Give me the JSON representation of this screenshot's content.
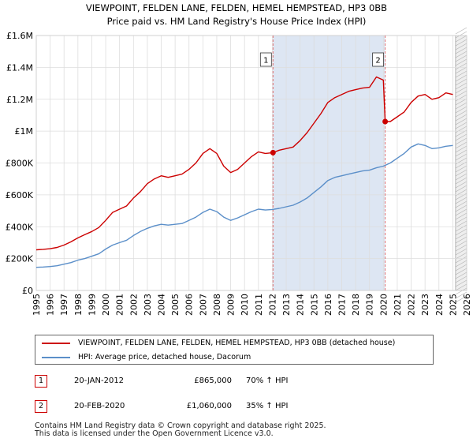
{
  "chart_data": {
    "type": "line",
    "title": "VIEWPOINT, FELDEN LANE, FELDEN, HEMEL HEMPSTEAD, HP3 0BB",
    "subtitle": "Price paid vs. HM Land Registry's House Price Index (HPI)",
    "xlabel": "",
    "ylabel": "",
    "xlim": [
      1995,
      2026
    ],
    "ylim": [
      0,
      1600000
    ],
    "x_ticks": [
      1995,
      1996,
      1997,
      1998,
      1999,
      2000,
      2001,
      2002,
      2003,
      2004,
      2005,
      2006,
      2007,
      2008,
      2009,
      2010,
      2011,
      2012,
      2013,
      2014,
      2015,
      2016,
      2017,
      2018,
      2019,
      2020,
      2021,
      2022,
      2023,
      2024,
      2025,
      2026
    ],
    "y_ticks": [
      {
        "value": 0,
        "label": "£0"
      },
      {
        "value": 200000,
        "label": "£200K"
      },
      {
        "value": 400000,
        "label": "£400K"
      },
      {
        "value": 600000,
        "label": "£600K"
      },
      {
        "value": 800000,
        "label": "£800K"
      },
      {
        "value": 1000000,
        "label": "£1M"
      },
      {
        "value": 1200000,
        "label": "£1.2M"
      },
      {
        "value": 1400000,
        "label": "£1.4M"
      },
      {
        "value": 1600000,
        "label": "£1.6M"
      }
    ],
    "grid": true,
    "series": [
      {
        "name": "VIEWPOINT, FELDEN LANE, FELDEN, HEMEL HEMPSTEAD, HP3 0BB (detached house)",
        "color": "#cc0000",
        "x": [
          1995.0,
          1995.5,
          1996.0,
          1996.5,
          1997.0,
          1997.5,
          1998.0,
          1998.5,
          1999.0,
          1999.5,
          2000.0,
          2000.5,
          2001.0,
          2001.5,
          2002.0,
          2002.5,
          2003.0,
          2003.5,
          2004.0,
          2004.5,
          2005.0,
          2005.5,
          2006.0,
          2006.5,
          2007.0,
          2007.5,
          2008.0,
          2008.5,
          2009.0,
          2009.5,
          2010.0,
          2010.5,
          2011.0,
          2011.5,
          2012.05,
          2012.5,
          2013.0,
          2013.5,
          2014.0,
          2014.5,
          2015.0,
          2015.5,
          2016.0,
          2016.5,
          2017.0,
          2017.5,
          2018.0,
          2018.5,
          2019.0,
          2019.5,
          2020.0,
          2020.13,
          2020.5,
          2021.0,
          2021.5,
          2022.0,
          2022.5,
          2023.0,
          2023.5,
          2024.0,
          2024.5,
          2025.0
        ],
        "values": [
          255000,
          258000,
          262000,
          270000,
          285000,
          305000,
          330000,
          350000,
          370000,
          395000,
          440000,
          490000,
          510000,
          530000,
          580000,
          620000,
          670000,
          700000,
          720000,
          710000,
          720000,
          730000,
          760000,
          800000,
          860000,
          890000,
          860000,
          780000,
          740000,
          760000,
          800000,
          840000,
          870000,
          860000,
          865000,
          880000,
          890000,
          900000,
          940000,
          990000,
          1050000,
          1110000,
          1180000,
          1210000,
          1230000,
          1250000,
          1260000,
          1270000,
          1275000,
          1340000,
          1320000,
          1060000,
          1060000,
          1090000,
          1120000,
          1180000,
          1220000,
          1230000,
          1200000,
          1210000,
          1240000,
          1230000
        ]
      },
      {
        "name": "HPI: Average price, detached house, Dacorum",
        "color": "#5b8fc9",
        "x": [
          1995.0,
          1995.5,
          1996.0,
          1996.5,
          1997.0,
          1997.5,
          1998.0,
          1998.5,
          1999.0,
          1999.5,
          2000.0,
          2000.5,
          2001.0,
          2001.5,
          2002.0,
          2002.5,
          2003.0,
          2003.5,
          2004.0,
          2004.5,
          2005.0,
          2005.5,
          2006.0,
          2006.5,
          2007.0,
          2007.5,
          2008.0,
          2008.5,
          2009.0,
          2009.5,
          2010.0,
          2010.5,
          2011.0,
          2011.5,
          2012.0,
          2012.5,
          2013.0,
          2013.5,
          2014.0,
          2014.5,
          2015.0,
          2015.5,
          2016.0,
          2016.5,
          2017.0,
          2017.5,
          2018.0,
          2018.5,
          2019.0,
          2019.5,
          2020.0,
          2020.5,
          2021.0,
          2021.5,
          2022.0,
          2022.5,
          2023.0,
          2023.5,
          2024.0,
          2024.5,
          2025.0
        ],
        "values": [
          145000,
          147000,
          150000,
          155000,
          165000,
          175000,
          190000,
          200000,
          215000,
          230000,
          260000,
          285000,
          300000,
          315000,
          345000,
          370000,
          390000,
          405000,
          415000,
          410000,
          415000,
          420000,
          440000,
          460000,
          490000,
          510000,
          495000,
          460000,
          440000,
          455000,
          475000,
          495000,
          510000,
          505000,
          508000,
          515000,
          525000,
          535000,
          555000,
          580000,
          615000,
          650000,
          690000,
          710000,
          720000,
          730000,
          740000,
          750000,
          755000,
          770000,
          780000,
          800000,
          830000,
          860000,
          900000,
          920000,
          910000,
          890000,
          895000,
          905000,
          910000
        ]
      }
    ],
    "annotations": [
      {
        "label": "1",
        "x": 2012.05,
        "y": 865000
      },
      {
        "label": "2",
        "x": 2020.13,
        "y": 1060000
      }
    ],
    "forecast_start": 2025.2
  },
  "legend": {
    "series1": "VIEWPOINT, FELDEN LANE, FELDEN, HEMEL HEMPSTEAD, HP3 0BB (detached house)",
    "series2": "HPI: Average price, detached house, Dacorum"
  },
  "sales": [
    {
      "num": "1",
      "date": "20-JAN-2012",
      "price": "£865,000",
      "hpi": "70% ↑ HPI"
    },
    {
      "num": "2",
      "date": "20-FEB-2020",
      "price": "£1,060,000",
      "hpi": "35% ↑ HPI"
    }
  ],
  "footer": {
    "line1": "Contains HM Land Registry data © Crown copyright and database right 2025.",
    "line2": "This data is licensed under the Open Government Licence v3.0."
  },
  "colors": {
    "property": "#cc0000",
    "hpi": "#5b8fc9",
    "shade": "#dde6f3",
    "grid": "#dddddd"
  }
}
